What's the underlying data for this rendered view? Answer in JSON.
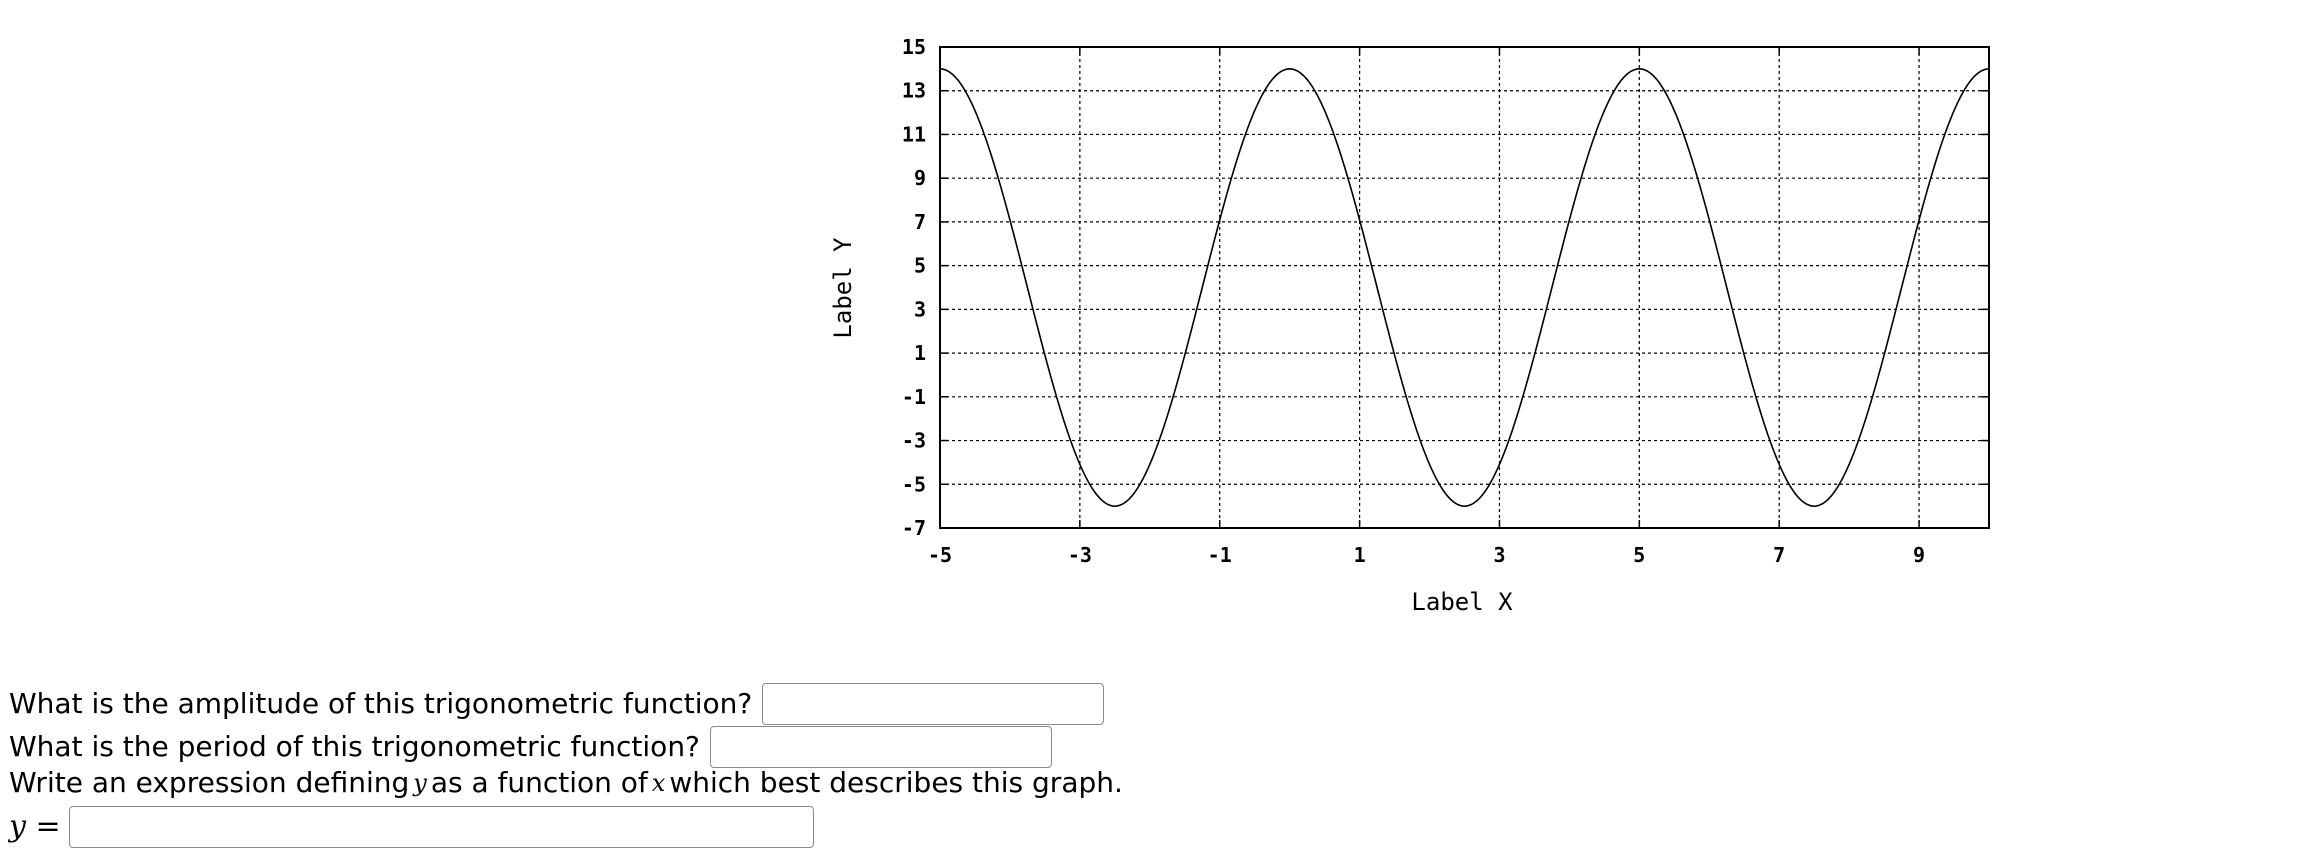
{
  "chart_data": {
    "type": "line",
    "xlabel": "Label X",
    "ylabel": "Label Y",
    "xlim": [
      -5,
      10
    ],
    "ylim": [
      -7,
      15
    ],
    "x_ticks": [
      -5,
      -3,
      -1,
      1,
      3,
      5,
      7,
      9
    ],
    "y_ticks": [
      15,
      13,
      11,
      9,
      7,
      5,
      3,
      1,
      -1,
      -3,
      -5,
      -7
    ],
    "grid": true,
    "series": [
      {
        "function": "4 + 10*cos(2*pi*(x - 0)/5)",
        "x": [
          -5,
          -4.5,
          -4,
          -3.5,
          -3,
          -2.5,
          -2,
          -1.5,
          -1,
          -0.5,
          0,
          0.5,
          1,
          1.5,
          2,
          2.5,
          3,
          3.5,
          4,
          4.5,
          5,
          5.5,
          6,
          6.5,
          7,
          7.5,
          8,
          8.5,
          9,
          9.5,
          10
        ],
        "y": [
          14,
          12.09,
          7.09,
          0.91,
          -4.09,
          -6,
          -4.09,
          0.91,
          7.09,
          12.09,
          14,
          12.09,
          7.09,
          0.91,
          -4.09,
          -6,
          -4.09,
          0.91,
          7.09,
          12.09,
          14,
          12.09,
          7.09,
          0.91,
          -4.09,
          -6,
          -4.09,
          0.91,
          7.09,
          12.09,
          14
        ],
        "color": "#000000"
      }
    ]
  },
  "questions": {
    "amplitude_text": "What is the amplitude of this trigonometric function?",
    "period_text": "What is the period of this trigonometric function?",
    "expression_prefix": "Write an expression defining",
    "expression_var_y": "y",
    "expression_middle": "as a function of",
    "expression_var_x": "x",
    "expression_suffix": "which best describes this graph.",
    "answer_label_var": "y",
    "answer_label_eq": " ="
  }
}
